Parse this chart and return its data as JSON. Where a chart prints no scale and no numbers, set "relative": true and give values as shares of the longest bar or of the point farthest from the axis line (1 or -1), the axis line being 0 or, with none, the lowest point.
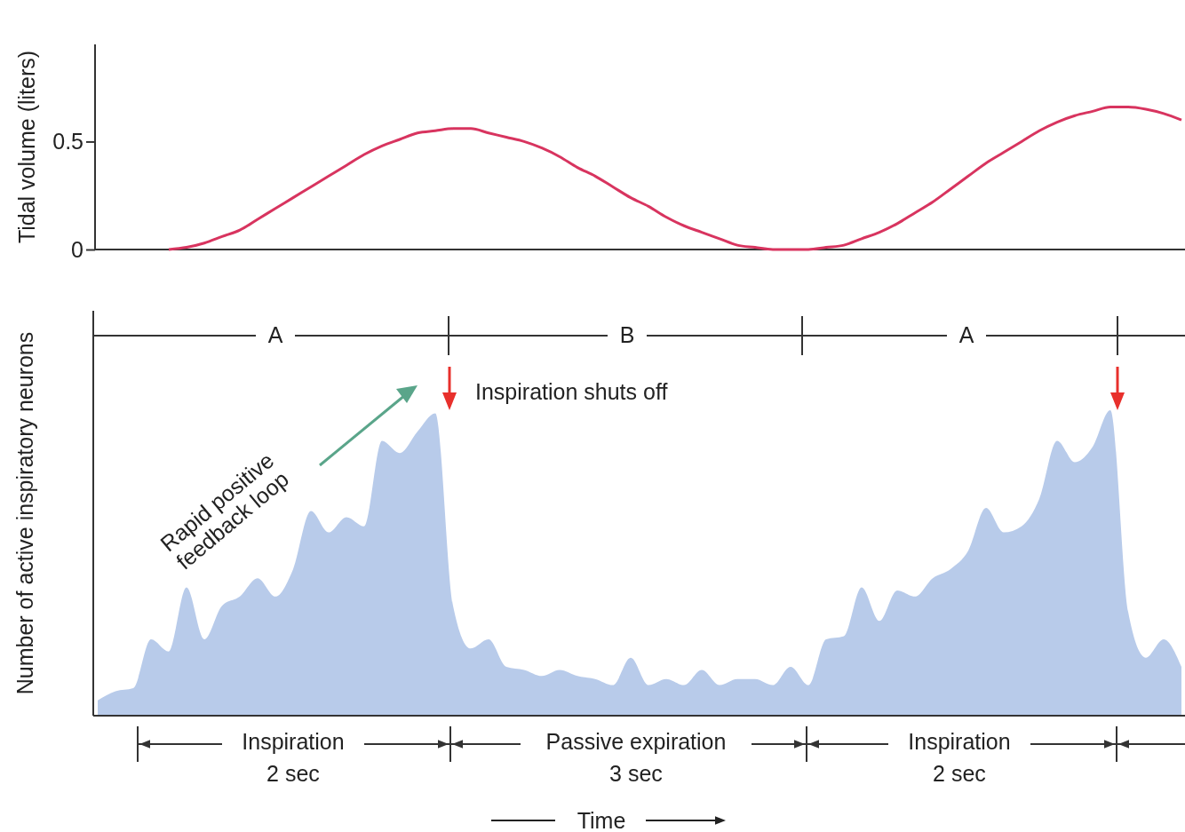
{
  "chart_data": [
    {
      "type": "line",
      "ylabel": "Tidal volume (liters)",
      "ylim": [
        0,
        0.95
      ],
      "yticks": [
        0,
        0.5
      ],
      "tick_labels": "y",
      "color": "#d8345f",
      "categories": [
        null,
        null,
        null,
        null,
        null,
        null,
        null,
        null,
        null,
        null,
        null,
        null,
        null,
        null,
        null,
        null,
        null,
        null,
        null,
        null,
        null,
        null,
        null,
        null,
        null,
        null,
        null,
        null,
        null,
        null,
        null,
        null,
        null,
        null,
        null,
        null,
        null,
        null,
        null,
        null,
        null,
        null,
        null,
        null,
        null,
        null,
        null,
        null,
        null,
        null,
        null,
        null,
        null,
        null,
        null,
        null,
        null,
        null,
        null,
        null,
        null,
        null
      ],
      "values": [
        null,
        null,
        null,
        null,
        0,
        0.01,
        0.03,
        0.06,
        0.09,
        0.14,
        0.19,
        0.24,
        0.29,
        0.34,
        0.39,
        0.44,
        0.48,
        0.51,
        0.54,
        0.55,
        0.56,
        0.56,
        0.54,
        0.52,
        0.5,
        0.47,
        0.43,
        0.38,
        0.34,
        0.29,
        0.24,
        0.2,
        0.15,
        0.11,
        0.08,
        0.05,
        0.02,
        0.01,
        0,
        0,
        0,
        0.01,
        0.02,
        0.05,
        0.08,
        0.12,
        0.17,
        0.22,
        0.28,
        0.34,
        0.4,
        0.45,
        0.5,
        0.55,
        0.59,
        0.62,
        0.64,
        0.66,
        0.66,
        0.65,
        0.63,
        0.6
      ]
    },
    {
      "type": "area",
      "relative": true,
      "ylabel": "Number of  active inspiratory neurons",
      "xlabel": "Time",
      "tick_labels": false,
      "color": "#b8cbea",
      "categories": [
        null,
        null,
        null,
        null,
        null,
        null,
        null,
        null,
        null,
        null,
        null,
        null,
        null,
        null,
        null,
        null,
        null,
        null,
        null,
        null,
        null,
        null,
        null,
        null,
        null,
        null,
        null,
        null,
        null,
        null,
        null,
        null,
        null,
        null,
        null,
        null,
        null,
        null,
        null,
        null,
        null,
        null,
        null,
        null,
        null,
        null,
        null,
        null,
        null,
        null,
        null,
        null,
        null,
        null,
        null,
        null,
        null,
        null,
        null,
        null,
        null,
        null
      ],
      "values": [
        0.05,
        0.08,
        0.09,
        0.25,
        0.21,
        0.42,
        0.25,
        0.36,
        0.39,
        0.45,
        0.39,
        0.48,
        0.67,
        0.6,
        0.65,
        0.62,
        0.9,
        0.86,
        0.93,
        0.99,
        0.36,
        0.22,
        0.25,
        0.16,
        0.15,
        0.13,
        0.15,
        0.13,
        0.12,
        0.1,
        0.19,
        0.1,
        0.12,
        0.1,
        0.15,
        0.1,
        0.12,
        0.12,
        0.1,
        0.16,
        0.1,
        0.25,
        0.26,
        0.42,
        0.31,
        0.41,
        0.39,
        0.45,
        0.48,
        0.54,
        0.68,
        0.6,
        0.62,
        0.71,
        0.9,
        0.83,
        0.88,
        1,
        0.34,
        0.19,
        0.25,
        0.16
      ],
      "annotations": [
        "A",
        "B",
        "A",
        "Inspiration shuts off",
        "Rapid positive\nfeedback loop",
        "Inspiration\n2 sec",
        "Passive expiration\n3 sec",
        "Inspiration\n2 sec"
      ]
    }
  ]
}
